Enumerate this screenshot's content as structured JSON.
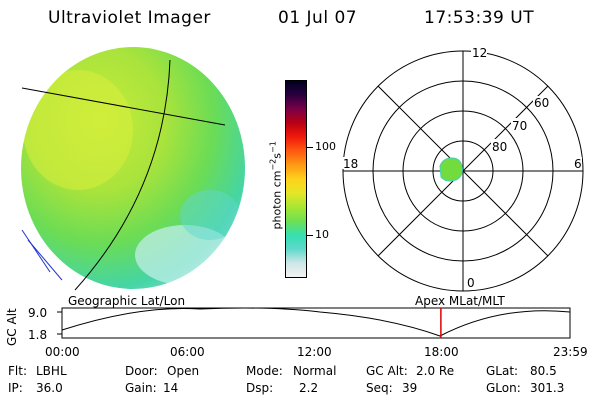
{
  "header": {
    "instrument": "Ultraviolet Imager",
    "date": "01 Jul 07",
    "time": "17:53:39 UT"
  },
  "image_panel": {
    "projection_label": "Geographic Lat/Lon"
  },
  "colorbar": {
    "unit_prefix": "photon cm",
    "exp1": "−2",
    "s": "s",
    "exp2": "−1",
    "tick_100": "100",
    "tick_10": "10",
    "colors": [
      "#f2f2f2",
      "#cfe6e6",
      "#5fd8cc",
      "#35e0b0",
      "#6fe050",
      "#a8e633",
      "#e6e626",
      "#ffd21c",
      "#ff9a14",
      "#ff5a10",
      "#f01a0a",
      "#b80014",
      "#7a0046",
      "#2a003f",
      "#000020"
    ]
  },
  "polar_panel": {
    "label": "Apex MLat/MLT",
    "mlt_labels": {
      "top": "12",
      "left": "18",
      "right": "6",
      "bottom": "0"
    },
    "lat_labels": [
      "60",
      "70",
      "80"
    ]
  },
  "timeline": {
    "axis_title": "GC Alt",
    "y_labels": [
      "9.0",
      "1.8"
    ],
    "x_labels": [
      "00:00",
      "06:00",
      "12:00",
      "18:00",
      "23:59"
    ],
    "current_time_marker_hours": 17.9
  },
  "status": {
    "flt_label": "Flt:",
    "flt_value": "LBHL",
    "ip_label": "IP:",
    "ip_value": "36.0",
    "door_label": "Door:",
    "door_value": "Open",
    "gain_label": "Gain:",
    "gain_value": "14",
    "mode_label": "Mode:",
    "mode_value": "Normal",
    "dsp_label": "Dsp:",
    "dsp_value": "2.2",
    "gcalt_label": "GC Alt:",
    "gcalt_value": "2.0 Re",
    "seq_label": "Seq:",
    "seq_value": "39",
    "glat_label": "GLat:",
    "glat_value": "80.5",
    "glon_label": "GLon:",
    "glon_value": "301.3"
  }
}
